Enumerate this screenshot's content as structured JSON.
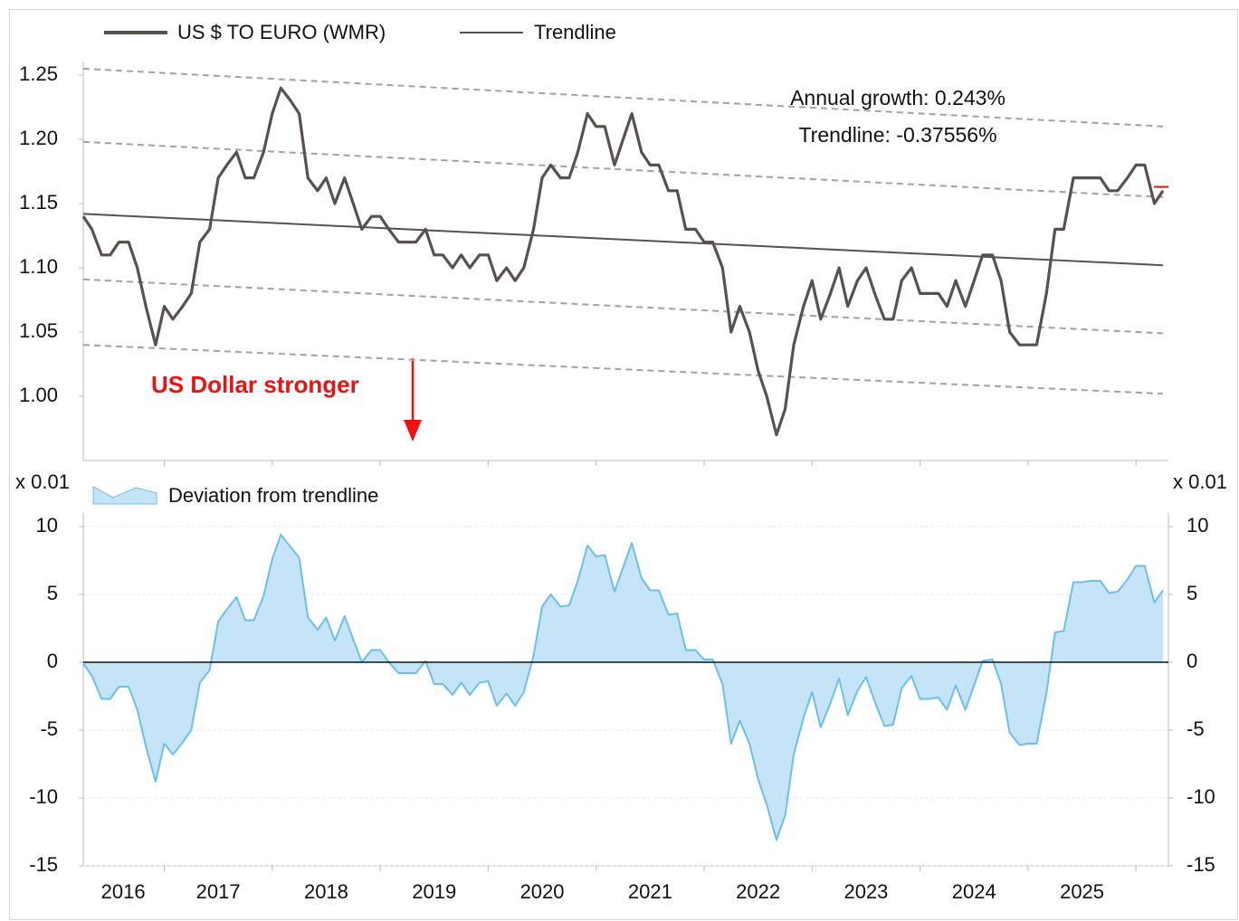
{
  "chart_data": [
    {
      "type": "line",
      "legend": "top",
      "xlim": [
        2016.25,
        2026.3
      ],
      "ylim": [
        0.95,
        1.26
      ],
      "yticks": [
        {
          "value": 1.0,
          "label": "1.00"
        },
        1.05,
        {
          "value": 1.1,
          "label": "1.10"
        },
        1.15,
        {
          "value": 1.2,
          "label": "1.20"
        },
        1.25
      ],
      "xtick_marks": [
        2017,
        2018,
        2019,
        2020,
        2021,
        2022,
        2023,
        2024,
        2025,
        2026
      ],
      "annotations": [
        "Annual growth: 0.243%",
        "Trendline: -0.37556%"
      ],
      "callout": "US Dollar stronger",
      "callout_color": "#ee1111",
      "x": [
        2016.25,
        2016.33,
        2016.42,
        2016.5,
        2016.58,
        2016.67,
        2016.75,
        2016.83,
        2016.92,
        2017,
        2017.08,
        2017.17,
        2017.25,
        2017.33,
        2017.42,
        2017.5,
        2017.58,
        2017.67,
        2017.75,
        2017.83,
        2017.92,
        2018,
        2018.08,
        2018.17,
        2018.25,
        2018.33,
        2018.42,
        2018.5,
        2018.58,
        2018.67,
        2018.75,
        2018.83,
        2018.92,
        2019,
        2019.08,
        2019.17,
        2019.25,
        2019.33,
        2019.42,
        2019.5,
        2019.58,
        2019.67,
        2019.75,
        2019.83,
        2019.92,
        2020,
        2020.08,
        2020.17,
        2020.25,
        2020.33,
        2020.42,
        2020.5,
        2020.58,
        2020.67,
        2020.75,
        2020.83,
        2020.92,
        2021,
        2021.08,
        2021.17,
        2021.25,
        2021.33,
        2021.42,
        2021.5,
        2021.58,
        2021.67,
        2021.75,
        2021.83,
        2021.92,
        2022,
        2022.08,
        2022.17,
        2022.25,
        2022.33,
        2022.42,
        2022.5,
        2022.58,
        2022.67,
        2022.75,
        2022.83,
        2022.92,
        2023,
        2023.08,
        2023.17,
        2023.25,
        2023.33,
        2023.42,
        2023.5,
        2023.58,
        2023.67,
        2023.75,
        2023.83,
        2023.92,
        2024,
        2024.08,
        2024.17,
        2024.25,
        2024.33,
        2024.42,
        2024.5,
        2024.58,
        2024.67,
        2024.75,
        2024.83,
        2024.92,
        2025,
        2025.08,
        2025.17,
        2025.25,
        2025.33,
        2025.42,
        2025.5,
        2025.58,
        2025.67,
        2025.75,
        2025.83,
        2025.92,
        2026,
        2026.08,
        2026.17,
        2026.25
      ],
      "series": [
        {
          "name": "US $ TO EURO (WMR)",
          "color": "#5a504d",
          "width": 3.2,
          "values": [
            1.14,
            1.13,
            1.11,
            1.11,
            1.12,
            1.12,
            1.1,
            1.07,
            1.04,
            1.07,
            1.06,
            1.07,
            1.08,
            1.12,
            1.13,
            1.17,
            1.18,
            1.19,
            1.17,
            1.17,
            1.19,
            1.22,
            1.24,
            1.23,
            1.22,
            1.17,
            1.16,
            1.17,
            1.15,
            1.17,
            1.15,
            1.13,
            1.14,
            1.14,
            1.13,
            1.12,
            1.12,
            1.12,
            1.13,
            1.11,
            1.11,
            1.1,
            1.11,
            1.1,
            1.11,
            1.11,
            1.09,
            1.1,
            1.09,
            1.1,
            1.13,
            1.17,
            1.18,
            1.17,
            1.17,
            1.19,
            1.22,
            1.21,
            1.21,
            1.18,
            1.2,
            1.22,
            1.19,
            1.18,
            1.18,
            1.16,
            1.16,
            1.13,
            1.13,
            1.12,
            1.12,
            1.1,
            1.05,
            1.07,
            1.05,
            1.02,
            1.0,
            0.97,
            0.99,
            1.04,
            1.07,
            1.09,
            1.06,
            1.08,
            1.1,
            1.07,
            1.09,
            1.1,
            1.08,
            1.06,
            1.06,
            1.09,
            1.1,
            1.08,
            1.08,
            1.08,
            1.07,
            1.09,
            1.07,
            1.09,
            1.11,
            1.11,
            1.09,
            1.05,
            1.04,
            1.04,
            1.04,
            1.08,
            1.13,
            1.13,
            1.17,
            1.17,
            1.17,
            1.17,
            1.16,
            1.16,
            1.17,
            1.18,
            1.18,
            1.15,
            1.16
          ]
        },
        {
          "name": "Trendline",
          "color": "#5a504d",
          "width": 2,
          "x": [
            2016.25,
            2026.25
          ],
          "values": [
            1.142,
            1.102
          ]
        }
      ],
      "channel_x": [
        2016.25,
        2026.25
      ],
      "channel_color": "#a8a09c",
      "channel_lines": [
        [
          1.255,
          1.21
        ],
        [
          1.198,
          1.155
        ],
        [
          1.091,
          1.049
        ],
        [
          1.04,
          1.002
        ]
      ],
      "end_marker": {
        "value": 1.163,
        "color": "#ee1111"
      }
    },
    {
      "type": "area",
      "legend": "top",
      "xlim": [
        2016.25,
        2026.3
      ],
      "ylim": [
        -15,
        11
      ],
      "yticks": [
        10,
        5,
        0,
        -5,
        -10,
        -15
      ],
      "y2lim": [
        -15,
        11
      ],
      "y2ticks": [
        10,
        5,
        0,
        -5,
        -10,
        -15
      ],
      "y_unit": "x 0.01",
      "y2_unit": "x 0.01",
      "grid": true,
      "xtick_marks": [
        2017,
        2018,
        2019,
        2020,
        2021,
        2022,
        2023,
        2024,
        2025,
        2026
      ],
      "xticks": [
        {
          "value": 2016.62,
          "label": "2016"
        },
        {
          "value": 2017.5,
          "label": "2017"
        },
        {
          "value": 2018.5,
          "label": "2018"
        },
        {
          "value": 2019.5,
          "label": "2019"
        },
        {
          "value": 2020.5,
          "label": "2020"
        },
        {
          "value": 2021.5,
          "label": "2021"
        },
        {
          "value": 2022.5,
          "label": "2022"
        },
        {
          "value": 2023.5,
          "label": "2023"
        },
        {
          "value": 2024.5,
          "label": "2024"
        },
        {
          "value": 2025.5,
          "label": "2025"
        }
      ],
      "x": [
        2016.25,
        2016.33,
        2016.42,
        2016.5,
        2016.58,
        2016.67,
        2016.75,
        2016.83,
        2016.92,
        2017,
        2017.08,
        2017.17,
        2017.25,
        2017.33,
        2017.42,
        2017.5,
        2017.58,
        2017.67,
        2017.75,
        2017.83,
        2017.92,
        2018,
        2018.08,
        2018.17,
        2018.25,
        2018.33,
        2018.42,
        2018.5,
        2018.58,
        2018.67,
        2018.75,
        2018.83,
        2018.92,
        2019,
        2019.08,
        2019.17,
        2019.25,
        2019.33,
        2019.42,
        2019.5,
        2019.58,
        2019.67,
        2019.75,
        2019.83,
        2019.92,
        2020,
        2020.08,
        2020.17,
        2020.25,
        2020.33,
        2020.42,
        2020.5,
        2020.58,
        2020.67,
        2020.75,
        2020.83,
        2020.92,
        2021,
        2021.08,
        2021.17,
        2021.25,
        2021.33,
        2021.42,
        2021.5,
        2021.58,
        2021.67,
        2021.75,
        2021.83,
        2021.92,
        2022,
        2022.08,
        2022.17,
        2022.25,
        2022.33,
        2022.42,
        2022.5,
        2022.58,
        2022.67,
        2022.75,
        2022.83,
        2022.92,
        2023,
        2023.08,
        2023.17,
        2023.25,
        2023.33,
        2023.42,
        2023.5,
        2023.58,
        2023.67,
        2023.75,
        2023.83,
        2023.92,
        2024,
        2024.08,
        2024.17,
        2024.25,
        2024.33,
        2024.42,
        2024.5,
        2024.58,
        2024.67,
        2024.75,
        2024.83,
        2024.92,
        2025,
        2025.08,
        2025.17,
        2025.25,
        2025.33,
        2025.42,
        2025.5,
        2025.58,
        2025.67,
        2025.75,
        2025.83,
        2025.92,
        2026,
        2026.08,
        2026.17,
        2026.25
      ],
      "series": [
        {
          "name": "Deviation from trendline",
          "color": "#6cbfe9",
          "fill": "#c6e4f7",
          "values": [
            -0.1,
            -1.0,
            -2.7,
            -2.7,
            -1.8,
            -1.8,
            -3.5,
            -6.2,
            -8.8,
            -6.0,
            -6.8,
            -5.9,
            -5.0,
            -1.5,
            -0.6,
            3.0,
            3.9,
            4.8,
            3.1,
            3.1,
            4.9,
            7.6,
            9.4,
            8.5,
            7.7,
            3.3,
            2.4,
            3.3,
            1.6,
            3.4,
            1.7,
            0.0,
            0.9,
            0.9,
            0.0,
            -0.8,
            -0.8,
            -0.8,
            0.1,
            -1.6,
            -1.6,
            -2.4,
            -1.5,
            -2.4,
            -1.5,
            -1.4,
            -3.2,
            -2.3,
            -3.2,
            -2.2,
            0.5,
            4.1,
            5.0,
            4.1,
            4.2,
            6.0,
            8.6,
            7.8,
            7.9,
            5.2,
            7.0,
            8.8,
            6.2,
            5.3,
            5.3,
            3.5,
            3.6,
            0.9,
            0.9,
            0.2,
            0.2,
            -1.6,
            -6.0,
            -4.3,
            -6.0,
            -8.6,
            -10.5,
            -13.1,
            -11.3,
            -6.8,
            -4.1,
            -2.2,
            -4.8,
            -3.0,
            -1.2,
            -3.9,
            -2.1,
            -1.1,
            -2.9,
            -4.7,
            -4.6,
            -1.9,
            -1.0,
            -2.7,
            -2.7,
            -2.6,
            -3.5,
            -1.7,
            -3.5,
            -1.7,
            0.1,
            0.2,
            -1.6,
            -5.2,
            -6.1,
            -6.0,
            -6.0,
            -2.3,
            2.2,
            2.3,
            5.9,
            5.9,
            6.0,
            6.0,
            5.1,
            5.2,
            6.1,
            7.1,
            7.1,
            4.4,
            5.3
          ]
        }
      ]
    }
  ]
}
